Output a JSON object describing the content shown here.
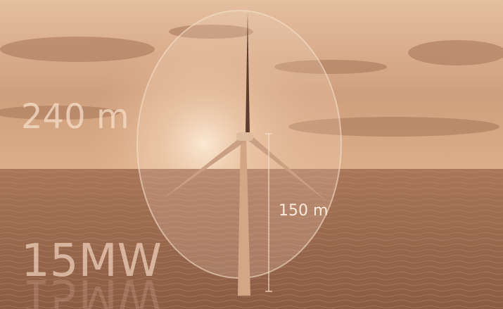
{
  "labels": {
    "height": "240 m",
    "rotor_radius": "150 m",
    "power": "15MW"
  }
}
